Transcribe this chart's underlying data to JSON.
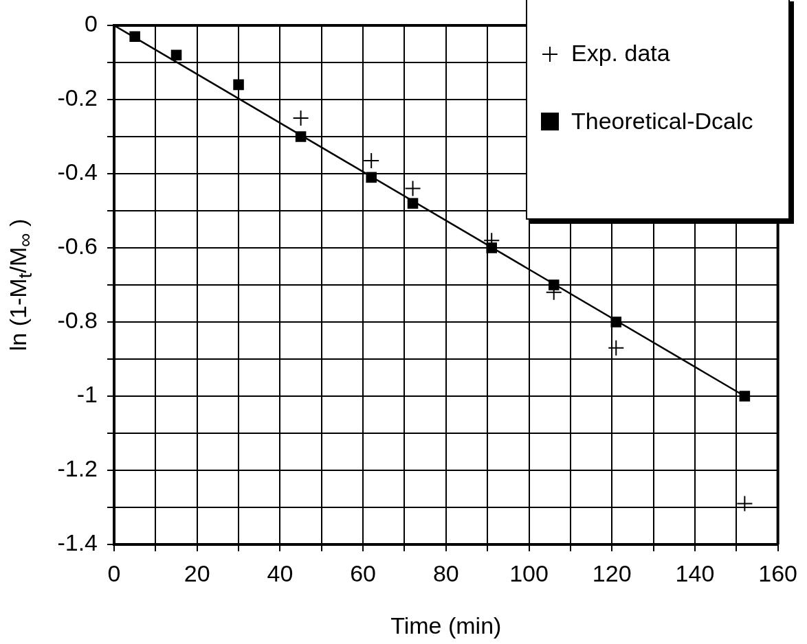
{
  "chart_data": {
    "type": "scatter",
    "xlabel": "Time (min)",
    "ylabel": "ln (1-M$_{t}$/M$_{∞}$ )",
    "xlim": [
      0,
      160
    ],
    "xticks": [
      0,
      {
        "value": 10,
        "label": null
      },
      20,
      {
        "value": 30,
        "label": null
      },
      40,
      {
        "value": 50,
        "label": null
      },
      60,
      {
        "value": 70,
        "label": null
      },
      80,
      {
        "value": 90,
        "label": null
      },
      100,
      {
        "value": 110,
        "label": null
      },
      120,
      {
        "value": 130,
        "label": null
      },
      140,
      {
        "value": 150,
        "label": null
      },
      160
    ],
    "ylim": [
      -1.4,
      0
    ],
    "yticks": [
      -1.4,
      {
        "value": -1.3,
        "label": null
      },
      -1.2,
      {
        "value": -1.1,
        "label": null
      },
      -1,
      {
        "value": -0.9,
        "label": null
      },
      -0.8,
      {
        "value": -0.7,
        "label": null
      },
      -0.6,
      {
        "value": -0.5,
        "label": null
      },
      -0.4,
      {
        "value": -0.3,
        "label": null
      },
      -0.2,
      {
        "value": -0.1,
        "label": null
      },
      0
    ],
    "grid": true,
    "legend": "top right",
    "series": [
      {
        "name": "Exp. data",
        "color": "#000000",
        "marker": "cross",
        "x": [
          45,
          62,
          72,
          91,
          106,
          121,
          152
        ],
        "values": [
          -0.25,
          -0.365,
          -0.44,
          -0.58,
          -0.72,
          -0.87,
          -1.29
        ]
      },
      {
        "name": "Theoretical-Dcalc",
        "color": "#000000",
        "marker": "square",
        "x": [
          5,
          15,
          30,
          45,
          62,
          72,
          91,
          106,
          121,
          152
        ],
        "values": [
          -0.03,
          -0.08,
          -0.16,
          -0.3,
          -0.41,
          -0.48,
          -0.6,
          -0.7,
          -0.8,
          -1.0
        ]
      },
      {
        "type": "line",
        "color": "#000000",
        "marker": "none",
        "line_style": "solid",
        "x": [
          0,
          152
        ],
        "values": [
          0,
          -1.0
        ]
      }
    ]
  }
}
